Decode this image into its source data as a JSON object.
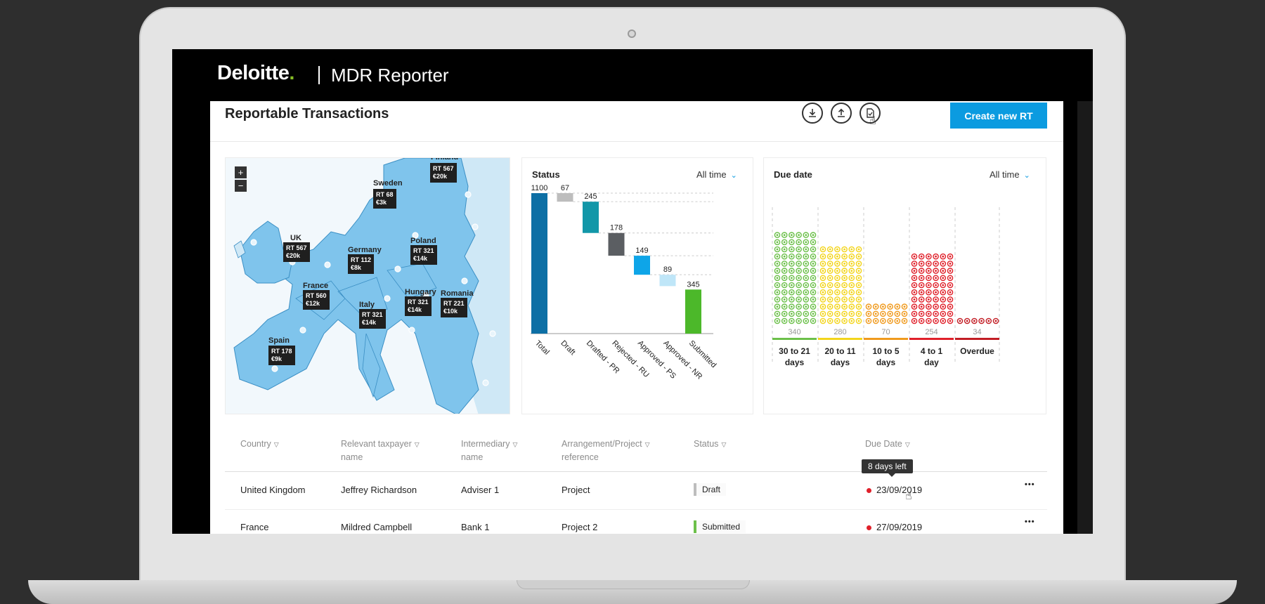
{
  "app": {
    "brand": "Deloitte",
    "brand_dot": ".",
    "title": "MDR Reporter"
  },
  "page": {
    "title": "Reportable Transactions",
    "create_label": "Create new RT"
  },
  "toolbar_icons": [
    "download-icon",
    "upload-icon",
    "export-report-icon"
  ],
  "colors": {
    "accent": "#0b9be0",
    "brand_green": "#86bc25",
    "map_fill": "#7fc4ec",
    "map_light": "#cfe8f6"
  },
  "map": {
    "zoom_in": "+",
    "zoom_out": "−",
    "countries": [
      {
        "name": "UK",
        "rt": "RT 567",
        "amount": "€20k"
      },
      {
        "name": "Sweden",
        "rt": "RT 68",
        "amount": "€3k"
      },
      {
        "name": "Finland",
        "rt": "RT 567",
        "amount": "€20k"
      },
      {
        "name": "Germany",
        "rt": "RT 112",
        "amount": "€8k"
      },
      {
        "name": "Poland",
        "rt": "RT 321",
        "amount": "€14k"
      },
      {
        "name": "France",
        "rt": "RT 560",
        "amount": "€12k"
      },
      {
        "name": "Italy",
        "rt": "RT 321",
        "amount": "€14k"
      },
      {
        "name": "Hungary",
        "rt": "RT 321",
        "amount": "€14k"
      },
      {
        "name": "Romania",
        "rt": "RT 221",
        "amount": "€10k"
      },
      {
        "name": "Spain",
        "rt": "RT 178",
        "amount": "€9k"
      }
    ]
  },
  "status_card": {
    "title": "Status",
    "filter": "All time"
  },
  "due_card": {
    "title": "Due date",
    "filter": "All time"
  },
  "chart_data": [
    {
      "type": "bar",
      "title": "Status",
      "categories": [
        "Total",
        "Draft",
        "Drafted - PR",
        "Rejected - RU",
        "Approved - PS",
        "Approved - NR",
        "Submitted"
      ],
      "values": [
        1100,
        67,
        245,
        178,
        149,
        89,
        345
      ],
      "colors": [
        "#0d6fa5",
        "#bdbdbd",
        "#1297a8",
        "#5b5e62",
        "#0ea5e8",
        "#bfe6f8",
        "#4cb82a"
      ]
    },
    {
      "type": "bar",
      "title": "Due date",
      "categories": [
        "30 to 21 days",
        "20 to 11 days",
        "10 to 5 days",
        "4 to 1 day",
        "Overdue"
      ],
      "category_lines": [
        [
          "30 to 21",
          "days"
        ],
        [
          "20 to 11",
          "days"
        ],
        [
          "10 to 5",
          "days"
        ],
        [
          "4 to 1",
          "day"
        ],
        [
          "Overdue"
        ]
      ],
      "values": [
        340,
        280,
        70,
        254,
        34
      ],
      "colors": [
        "#6cc04a",
        "#f3d51c",
        "#f09a1d",
        "#e0202a",
        "#c21d24"
      ]
    }
  ],
  "table": {
    "columns": [
      {
        "lines": [
          "Country"
        ]
      },
      {
        "lines": [
          "Relevant taxpayer",
          "name"
        ]
      },
      {
        "lines": [
          "Intermediary",
          "name"
        ]
      },
      {
        "lines": [
          "Arrangement/Project",
          "reference"
        ]
      },
      {
        "lines": [
          "Status"
        ]
      },
      {
        "lines": [
          "Due Date"
        ]
      }
    ],
    "filter_icon": "filter-icon",
    "more_label": "•••",
    "tooltip": "8 days left",
    "rows": [
      {
        "country": "United Kingdom",
        "taxpayer": "Jeffrey Richardson",
        "intermediary": "Adviser 1",
        "reference": "Project",
        "status": "Draft",
        "status_color": "#bdbdbd",
        "due": "23/09/2019"
      },
      {
        "country": "France",
        "taxpayer": "Mildred Campbell",
        "intermediary": "Bank 1",
        "reference": "Project 2",
        "status": "Submitted",
        "status_color": "#6cc04a",
        "due": "27/09/2019"
      }
    ]
  }
}
